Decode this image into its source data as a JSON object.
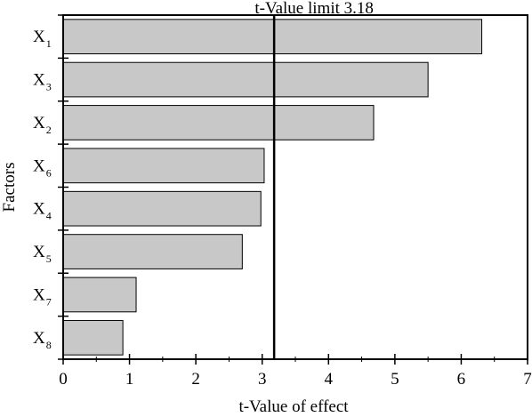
{
  "chart_data": {
    "type": "bar",
    "orientation": "horizontal",
    "categories": [
      {
        "base": "X",
        "sub": "1"
      },
      {
        "base": "X",
        "sub": "3"
      },
      {
        "base": "X",
        "sub": "2"
      },
      {
        "base": "X",
        "sub": "6"
      },
      {
        "base": "X",
        "sub": "4"
      },
      {
        "base": "X",
        "sub": "5"
      },
      {
        "base": "X",
        "sub": "7"
      },
      {
        "base": "X",
        "sub": "8"
      }
    ],
    "values": [
      6.31,
      5.5,
      4.68,
      3.03,
      2.98,
      2.7,
      1.1,
      0.9
    ],
    "xlabel": "t-Value of effect",
    "ylabel": "Factors",
    "xlim": [
      0,
      7
    ],
    "xticks": [
      0,
      1,
      2,
      3,
      4,
      5,
      6,
      7
    ],
    "threshold": {
      "value": 3.18,
      "label": "t-Value limit 3.18"
    },
    "bar_color": "#c8c8c8",
    "grid": false,
    "legend": "none"
  }
}
